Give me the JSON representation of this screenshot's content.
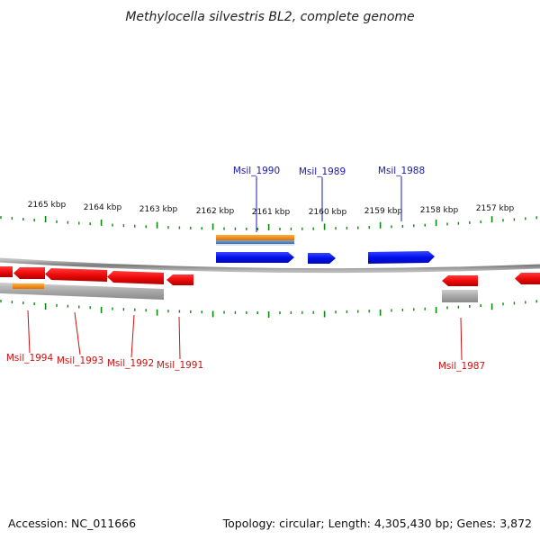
{
  "title": "Methylocella silvestris BL2, complete genome",
  "footer": {
    "accession": "Accession: NC_011666",
    "topology": "Topology: circular; Length: 4,305,430 bp; Genes: 3,872"
  },
  "scale_labels": [
    "2165 kbp",
    "2164 kbp",
    "2163 kbp",
    "2162 kbp",
    "2161 kbp",
    "2160 kbp",
    "2159 kbp",
    "2158 kbp",
    "2157 kbp"
  ],
  "genes_top": [
    {
      "label": "Msil_1990",
      "name": "gene-msil-1990"
    },
    {
      "label": "Msil_1989",
      "name": "gene-msil-1989"
    },
    {
      "label": "Msil_1988",
      "name": "gene-msil-1988"
    }
  ],
  "genes_bottom": [
    {
      "label": "Msil_1994",
      "name": "gene-msil-1994"
    },
    {
      "label": "Msil_1993",
      "name": "gene-msil-1993"
    },
    {
      "label": "Msil_1992",
      "name": "gene-msil-1992"
    },
    {
      "label": "Msil_1991",
      "name": "gene-msil-1991"
    },
    {
      "label": "Msil_1987",
      "name": "gene-msil-1987"
    }
  ],
  "colors": {
    "forward_gene": "#0a16ee",
    "reverse_gene": "#ee0a0a",
    "feature_orange": "#ff8c00",
    "feature_blue": "#4a7fc0",
    "tick_green": "#0a8a0a",
    "backbone": "#888888",
    "top_label": "#1a1ab0",
    "bottom_label": "#cc1111"
  }
}
